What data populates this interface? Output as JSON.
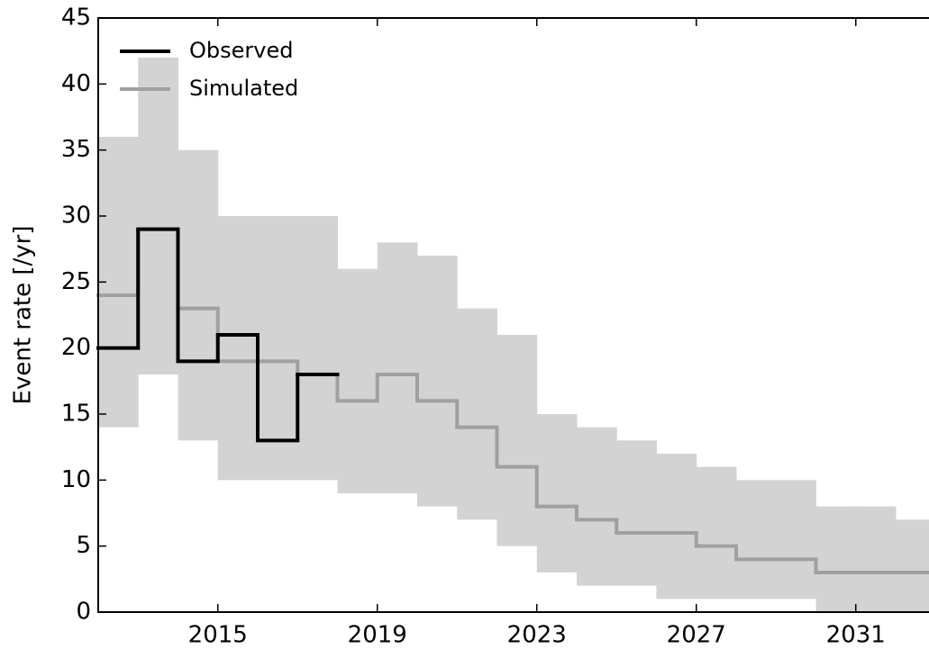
{
  "chart_data": {
    "type": "step",
    "ylabel": "Event rate [/yr]",
    "x": [
      2012,
      2013,
      2014,
      2015,
      2016,
      2017,
      2018,
      2019,
      2020,
      2021,
      2022,
      2023,
      2024,
      2025,
      2026,
      2027,
      2028,
      2029,
      2030,
      2031,
      2032
    ],
    "series": [
      {
        "name": "Observed",
        "color": "#000000",
        "values": [
          20,
          29,
          19,
          21,
          13,
          18,
          null,
          null,
          null,
          null,
          null,
          null,
          null,
          null,
          null,
          null,
          null,
          null,
          null,
          null,
          null
        ]
      },
      {
        "name": "Simulated",
        "color": "#a0a0a0",
        "values": [
          24,
          29,
          23,
          19,
          19,
          18,
          16,
          18,
          16,
          14,
          11,
          8,
          7,
          6,
          6,
          5,
          4,
          4,
          3,
          3,
          3
        ]
      }
    ],
    "band_upper": [
      36,
      42,
      35,
      30,
      30,
      30,
      26,
      28,
      27,
      23,
      21,
      15,
      14,
      13,
      12,
      11,
      10,
      10,
      8,
      8,
      7
    ],
    "band_lower": [
      14,
      18,
      13,
      10,
      10,
      10,
      9,
      9,
      8,
      7,
      5,
      3,
      2,
      2,
      1,
      1,
      1,
      1,
      0,
      0,
      0
    ],
    "band_color": "#d3d3d3",
    "xlim": [
      2012,
      2033
    ],
    "ylim": [
      0,
      45
    ],
    "xticks": [
      2015,
      2019,
      2023,
      2027,
      2031
    ],
    "yticks": [
      0,
      5,
      10,
      15,
      20,
      25,
      30,
      35,
      40,
      45
    ],
    "legend": "upper left"
  }
}
